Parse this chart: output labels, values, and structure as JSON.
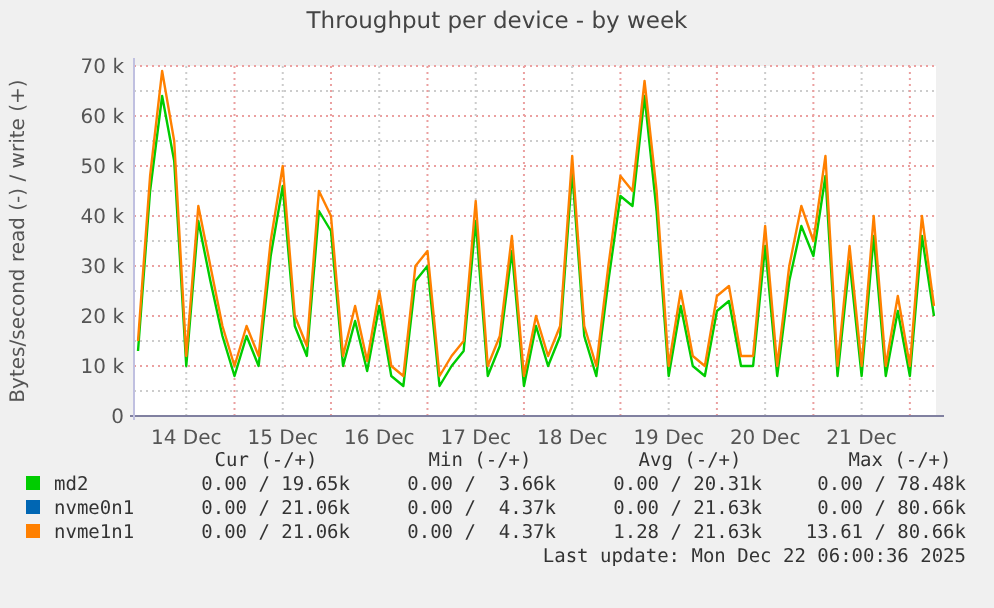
{
  "chart_data": {
    "type": "line",
    "title": "Throughput per device - by week",
    "ylabel": "Bytes/second read (-) / write (+)",
    "x": [
      "2025-12-14T00:00",
      "2025-12-14T03:00",
      "2025-12-14T06:00",
      "2025-12-14T09:00",
      "2025-12-14T12:00",
      "2025-12-14T15:00",
      "2025-12-14T18:00",
      "2025-12-14T21:00",
      "2025-12-15T00:00",
      "2025-12-15T03:00",
      "2025-12-15T06:00",
      "2025-12-15T09:00",
      "2025-12-15T12:00",
      "2025-12-15T15:00",
      "2025-12-15T18:00",
      "2025-12-15T21:00",
      "2025-12-16T00:00",
      "2025-12-16T03:00",
      "2025-12-16T06:00",
      "2025-12-16T09:00",
      "2025-12-16T12:00",
      "2025-12-16T15:00",
      "2025-12-16T18:00",
      "2025-12-16T21:00",
      "2025-12-17T00:00",
      "2025-12-17T03:00",
      "2025-12-17T06:00",
      "2025-12-17T09:00",
      "2025-12-17T12:00",
      "2025-12-17T15:00",
      "2025-12-17T18:00",
      "2025-12-17T21:00",
      "2025-12-18T00:00",
      "2025-12-18T03:00",
      "2025-12-18T06:00",
      "2025-12-18T09:00",
      "2025-12-18T12:00",
      "2025-12-18T15:00",
      "2025-12-18T18:00",
      "2025-12-18T21:00",
      "2025-12-19T00:00",
      "2025-12-19T03:00",
      "2025-12-19T06:00",
      "2025-12-19T09:00",
      "2025-12-19T12:00",
      "2025-12-19T15:00",
      "2025-12-19T18:00",
      "2025-12-19T21:00",
      "2025-12-20T00:00",
      "2025-12-20T03:00",
      "2025-12-20T06:00",
      "2025-12-20T09:00",
      "2025-12-20T12:00",
      "2025-12-20T15:00",
      "2025-12-20T18:00",
      "2025-12-20T21:00",
      "2025-12-21T00:00",
      "2025-12-21T03:00",
      "2025-12-21T06:00",
      "2025-12-21T09:00",
      "2025-12-21T12:00",
      "2025-12-21T15:00",
      "2025-12-21T18:00",
      "2025-12-21T21:00",
      "2025-12-22T00:00",
      "2025-12-22T03:00",
      "2025-12-22T06:00"
    ],
    "series": [
      {
        "name": "md2",
        "color": "#00cc00",
        "values": [
          13000,
          45000,
          64000,
          51000,
          10000,
          39000,
          27000,
          16000,
          8000,
          16000,
          10000,
          32000,
          46000,
          18000,
          12000,
          41000,
          37000,
          10000,
          19000,
          9000,
          22000,
          8000,
          6000,
          27000,
          30000,
          6000,
          10000,
          13000,
          39000,
          8000,
          14000,
          33000,
          6000,
          18000,
          10000,
          16000,
          49000,
          16000,
          8000,
          27000,
          44000,
          42000,
          64000,
          41000,
          8000,
          22000,
          10000,
          8000,
          21000,
          23000,
          10000,
          10000,
          34000,
          8000,
          27000,
          38000,
          32000,
          48000,
          8000,
          31000,
          8000,
          36000,
          8000,
          21000,
          8000,
          36000,
          20000
        ]
      },
      {
        "name": "nvme0n1",
        "color": "#0066b3",
        "values": [
          null,
          null,
          null,
          null,
          null,
          null,
          null,
          null,
          null,
          null,
          null,
          null,
          null,
          null,
          null,
          null,
          null,
          null,
          null,
          null,
          null,
          null,
          null,
          null,
          null,
          null,
          null,
          null,
          null,
          null,
          null,
          null,
          null,
          null,
          null,
          null,
          null,
          null,
          null,
          null,
          null,
          null,
          null,
          null,
          null,
          null,
          null,
          null,
          null,
          null,
          null,
          null,
          null,
          null,
          null,
          null,
          null,
          null,
          null,
          null,
          null,
          null,
          null,
          null,
          null,
          null,
          null
        ]
      },
      {
        "name": "nvme1n1",
        "color": "#ff8000",
        "values": [
          15000,
          48000,
          69000,
          55000,
          12000,
          42000,
          30000,
          18000,
          10000,
          18000,
          12000,
          35000,
          50000,
          20000,
          14000,
          45000,
          40000,
          12000,
          22000,
          11000,
          25000,
          10000,
          8000,
          30000,
          33000,
          8000,
          12000,
          15000,
          43000,
          10000,
          16000,
          36000,
          8000,
          20000,
          12000,
          18000,
          52000,
          18000,
          10000,
          30000,
          48000,
          45000,
          67000,
          45000,
          10000,
          25000,
          12000,
          10000,
          24000,
          26000,
          12000,
          12000,
          38000,
          10000,
          30000,
          42000,
          35000,
          52000,
          10000,
          34000,
          10000,
          40000,
          10000,
          24000,
          10000,
          40000,
          22000
        ]
      }
    ],
    "xlim": [
      "2025-12-13T23:00",
      "2025-12-22T06:30"
    ],
    "xticks": [
      {
        "value": "2025-12-14T12:00",
        "label": "14 Dec"
      },
      {
        "value": "2025-12-15T12:00",
        "label": "15 Dec"
      },
      {
        "value": "2025-12-16T12:00",
        "label": "16 Dec"
      },
      {
        "value": "2025-12-17T12:00",
        "label": "17 Dec"
      },
      {
        "value": "2025-12-18T12:00",
        "label": "18 Dec"
      },
      {
        "value": "2025-12-19T12:00",
        "label": "19 Dec"
      },
      {
        "value": "2025-12-20T12:00",
        "label": "20 Dec"
      },
      {
        "value": "2025-12-21T12:00",
        "label": "21 Dec"
      },
      {
        "value": "2025-12-15T00:00",
        "label": null
      },
      {
        "value": "2025-12-16T00:00",
        "label": null
      },
      {
        "value": "2025-12-17T00:00",
        "label": null
      },
      {
        "value": "2025-12-18T00:00",
        "label": null
      },
      {
        "value": "2025-12-19T00:00",
        "label": null
      },
      {
        "value": "2025-12-20T00:00",
        "label": null
      },
      {
        "value": "2025-12-21T00:00",
        "label": null
      },
      {
        "value": "2025-12-22T00:00",
        "label": null
      }
    ],
    "ylim": [
      0,
      70000
    ],
    "yticks": [
      0,
      {
        "value": 10000,
        "label": "10 k"
      },
      {
        "value": 20000,
        "label": "20 k"
      },
      {
        "value": 30000,
        "label": "30 k"
      },
      {
        "value": 40000,
        "label": "40 k"
      },
      {
        "value": 50000,
        "label": "50 k"
      },
      {
        "value": 60000,
        "label": "60 k"
      },
      {
        "value": 70000,
        "label": "70 k"
      },
      {
        "value": 5000,
        "label": null
      },
      {
        "value": 15000,
        "label": null
      },
      {
        "value": 25000,
        "label": null
      },
      {
        "value": 35000,
        "label": null
      },
      {
        "value": 45000,
        "label": null
      },
      {
        "value": 55000,
        "label": null
      },
      {
        "value": 65000,
        "label": null
      }
    ],
    "grid": true,
    "legend": "bottom",
    "annotations": [
      "Cur (-/+)",
      "Min (-/+)",
      "Avg (-/+)",
      "Max (-/+)",
      "0.00 / 19.65k",
      "0.00 /  3.66k",
      "0.00 / 20.31k",
      "0.00 / 78.48k",
      "0.00 / 21.06k",
      "0.00 /  4.37k",
      "0.00 / 21.63k",
      "0.00 / 80.66k",
      "0.00 / 21.06k",
      "0.00 /  4.37k",
      "1.28 / 21.63k",
      "13.61 / 80.66k",
      "Last update: Mon Dec 22 06:00:36 2025"
    ]
  }
}
